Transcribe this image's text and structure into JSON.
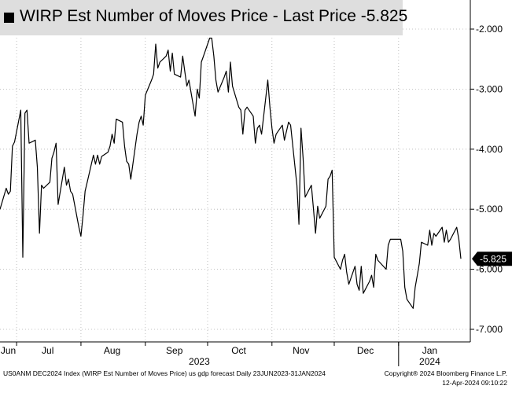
{
  "chart_data": {
    "type": "line",
    "title": "WIRP Est Number of Moves Price - Last Price -5.825",
    "last_value_label": "-5.825",
    "ylim": [
      -7.2,
      -1.6
    ],
    "y_ticks": [
      -2.0,
      -3.0,
      -4.0,
      -5.0,
      -6.0,
      -7.0
    ],
    "y_tick_labels": [
      "-2.000",
      "-3.000",
      "-4.000",
      "-5.000",
      "-6.000",
      "-7.000"
    ],
    "x_tick_labels": [
      "Jun",
      "Jul",
      "Aug",
      "Sep",
      "Oct",
      "Nov",
      "Dec",
      "Jan"
    ],
    "year_labels": [
      "2023",
      "2024"
    ],
    "grid": true,
    "legend": "top-left",
    "colors": {
      "line": "#000000",
      "grid": "#b0b0b0",
      "legend_bg": "#dedede",
      "axis": "#000000"
    },
    "series": [
      {
        "name": "WIRP Est Number of Moves Price",
        "values": [
          [
            "2023-06-23",
            -5.0
          ],
          [
            "2023-06-26",
            -4.65
          ],
          [
            "2023-06-27",
            -4.75
          ],
          [
            "2023-06-28",
            -4.7
          ],
          [
            "2023-06-29",
            -3.95
          ],
          [
            "2023-06-30",
            -3.88
          ],
          [
            "2023-07-03",
            -3.35
          ],
          [
            "2023-07-04",
            -5.8
          ],
          [
            "2023-07-05",
            -3.4
          ],
          [
            "2023-07-06",
            -3.35
          ],
          [
            "2023-07-07",
            -3.9
          ],
          [
            "2023-07-10",
            -3.85
          ],
          [
            "2023-07-11",
            -4.3
          ],
          [
            "2023-07-12",
            -5.4
          ],
          [
            "2023-07-13",
            -4.6
          ],
          [
            "2023-07-14",
            -4.65
          ],
          [
            "2023-07-17",
            -4.55
          ],
          [
            "2023-07-18",
            -4.15
          ],
          [
            "2023-07-19",
            -4.05
          ],
          [
            "2023-07-20",
            -3.9
          ],
          [
            "2023-07-21",
            -4.92
          ],
          [
            "2023-07-24",
            -4.3
          ],
          [
            "2023-07-25",
            -4.6
          ],
          [
            "2023-07-26",
            -4.5
          ],
          [
            "2023-07-27",
            -4.7
          ],
          [
            "2023-07-28",
            -4.75
          ],
          [
            "2023-07-31",
            -5.3
          ],
          [
            "2023-08-01",
            -5.45
          ],
          [
            "2023-08-02",
            -5.1
          ],
          [
            "2023-08-03",
            -4.7
          ],
          [
            "2023-08-04",
            -4.55
          ],
          [
            "2023-08-07",
            -4.1
          ],
          [
            "2023-08-08",
            -4.25
          ],
          [
            "2023-08-09",
            -4.1
          ],
          [
            "2023-08-10",
            -4.25
          ],
          [
            "2023-08-11",
            -4.12
          ],
          [
            "2023-08-14",
            -4.05
          ],
          [
            "2023-08-15",
            -3.95
          ],
          [
            "2023-08-16",
            -3.75
          ],
          [
            "2023-08-17",
            -3.9
          ],
          [
            "2023-08-18",
            -3.5
          ],
          [
            "2023-08-21",
            -3.55
          ],
          [
            "2023-08-22",
            -3.95
          ],
          [
            "2023-08-23",
            -4.2
          ],
          [
            "2023-08-24",
            -4.25
          ],
          [
            "2023-08-25",
            -4.5
          ],
          [
            "2023-08-28",
            -3.75
          ],
          [
            "2023-08-29",
            -3.55
          ],
          [
            "2023-08-30",
            -3.45
          ],
          [
            "2023-08-31",
            -3.6
          ],
          [
            "2023-09-01",
            -3.1
          ],
          [
            "2023-09-04",
            -2.85
          ],
          [
            "2023-09-05",
            -2.75
          ],
          [
            "2023-09-06",
            -2.25
          ],
          [
            "2023-09-07",
            -2.65
          ],
          [
            "2023-09-08",
            -2.55
          ],
          [
            "2023-09-11",
            -2.45
          ],
          [
            "2023-09-12",
            -2.35
          ],
          [
            "2023-09-13",
            -2.7
          ],
          [
            "2023-09-14",
            -2.4
          ],
          [
            "2023-09-15",
            -2.75
          ],
          [
            "2023-09-18",
            -2.8
          ],
          [
            "2023-09-19",
            -2.45
          ],
          [
            "2023-09-20",
            -2.7
          ],
          [
            "2023-09-21",
            -2.95
          ],
          [
            "2023-09-22",
            -2.85
          ],
          [
            "2023-09-25",
            -3.45
          ],
          [
            "2023-09-26",
            -3.0
          ],
          [
            "2023-09-27",
            -3.15
          ],
          [
            "2023-09-28",
            -2.55
          ],
          [
            "2023-09-29",
            -2.45
          ],
          [
            "2023-10-02",
            -2.15
          ],
          [
            "2023-10-03",
            -2.15
          ],
          [
            "2023-10-04",
            -2.45
          ],
          [
            "2023-10-05",
            -2.85
          ],
          [
            "2023-10-06",
            -3.05
          ],
          [
            "2023-10-09",
            -2.8
          ],
          [
            "2023-10-10",
            -2.7
          ],
          [
            "2023-10-11",
            -3.05
          ],
          [
            "2023-10-12",
            -2.55
          ],
          [
            "2023-10-13",
            -2.95
          ],
          [
            "2023-10-16",
            -3.3
          ],
          [
            "2023-10-17",
            -3.35
          ],
          [
            "2023-10-18",
            -3.75
          ],
          [
            "2023-10-19",
            -3.35
          ],
          [
            "2023-10-20",
            -3.3
          ],
          [
            "2023-10-23",
            -3.45
          ],
          [
            "2023-10-24",
            -3.9
          ],
          [
            "2023-10-25",
            -3.65
          ],
          [
            "2023-10-26",
            -3.6
          ],
          [
            "2023-10-27",
            -3.75
          ],
          [
            "2023-10-30",
            -2.85
          ],
          [
            "2023-10-31",
            -3.3
          ],
          [
            "2023-11-01",
            -3.65
          ],
          [
            "2023-11-02",
            -3.9
          ],
          [
            "2023-11-03",
            -3.75
          ],
          [
            "2023-11-06",
            -3.6
          ],
          [
            "2023-11-07",
            -3.85
          ],
          [
            "2023-11-08",
            -3.7
          ],
          [
            "2023-11-09",
            -3.55
          ],
          [
            "2023-11-10",
            -3.6
          ],
          [
            "2023-11-13",
            -4.6
          ],
          [
            "2023-11-14",
            -5.25
          ],
          [
            "2023-11-15",
            -3.65
          ],
          [
            "2023-11-16",
            -4.15
          ],
          [
            "2023-11-17",
            -4.8
          ],
          [
            "2023-11-20",
            -4.6
          ],
          [
            "2023-11-21",
            -5.0
          ],
          [
            "2023-11-22",
            -5.4
          ],
          [
            "2023-11-23",
            -4.95
          ],
          [
            "2023-11-24",
            -5.15
          ],
          [
            "2023-11-27",
            -4.95
          ],
          [
            "2023-11-28",
            -4.5
          ],
          [
            "2023-11-29",
            -4.45
          ],
          [
            "2023-11-30",
            -4.35
          ],
          [
            "2023-12-01",
            -5.8
          ],
          [
            "2023-12-04",
            -6.0
          ],
          [
            "2023-12-05",
            -5.85
          ],
          [
            "2023-12-06",
            -5.75
          ],
          [
            "2023-12-07",
            -6.05
          ],
          [
            "2023-12-08",
            -6.25
          ],
          [
            "2023-12-11",
            -5.95
          ],
          [
            "2023-12-12",
            -6.25
          ],
          [
            "2023-12-13",
            -6.35
          ],
          [
            "2023-12-14",
            -5.95
          ],
          [
            "2023-12-15",
            -6.4
          ],
          [
            "2023-12-18",
            -6.2
          ],
          [
            "2023-12-19",
            -6.1
          ],
          [
            "2023-12-20",
            -6.3
          ],
          [
            "2023-12-21",
            -5.75
          ],
          [
            "2023-12-22",
            -5.85
          ],
          [
            "2023-12-26",
            -6.0
          ],
          [
            "2023-12-27",
            -5.6
          ],
          [
            "2023-12-28",
            -5.5
          ],
          [
            "2024-01-02",
            -5.5
          ],
          [
            "2024-01-03",
            -5.7
          ],
          [
            "2024-01-04",
            -6.3
          ],
          [
            "2024-01-05",
            -6.5
          ],
          [
            "2024-01-08",
            -6.65
          ],
          [
            "2024-01-09",
            -6.3
          ],
          [
            "2024-01-10",
            -6.1
          ],
          [
            "2024-01-11",
            -5.9
          ],
          [
            "2024-01-12",
            -5.55
          ],
          [
            "2024-01-15",
            -5.6
          ],
          [
            "2024-01-16",
            -5.35
          ],
          [
            "2024-01-17",
            -5.6
          ],
          [
            "2024-01-18",
            -5.4
          ],
          [
            "2024-01-19",
            -5.45
          ],
          [
            "2024-01-22",
            -5.3
          ],
          [
            "2024-01-23",
            -5.55
          ],
          [
            "2024-01-24",
            -5.35
          ],
          [
            "2024-01-25",
            -5.55
          ],
          [
            "2024-01-26",
            -5.5
          ],
          [
            "2024-01-29",
            -5.3
          ],
          [
            "2024-01-30",
            -5.5
          ],
          [
            "2024-01-31",
            -5.825
          ]
        ]
      }
    ]
  },
  "footer": {
    "left": "US0ANM DEC2024 Index (WIRP Est Number of Moves Price) us gdp forecast  Daily 23JUN2023-31JAN2024",
    "right_line1": "Copyright® 2024 Bloomberg Finance L.P.",
    "right_line2": "12-Apr-2024 09:10:22"
  }
}
